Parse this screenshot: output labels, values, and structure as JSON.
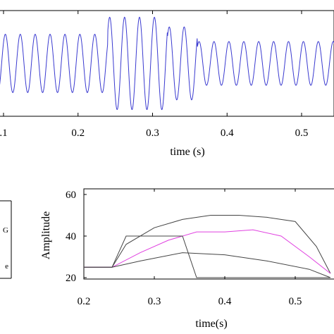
{
  "colors": {
    "signal": "#3a3ad0",
    "amplitude_magenta": "#e040e0",
    "envelope_dark": "#444444",
    "axis": "#000000"
  },
  "chart_data": [
    {
      "type": "line",
      "title": "",
      "xlabel": "time (s)",
      "ylabel": "",
      "xlim": [
        0.0,
        0.55
      ],
      "ylim": [
        -1.05,
        1.05
      ],
      "x_ticks": [
        0.1,
        0.2,
        0.3,
        0.4,
        0.5
      ],
      "x_tick_labels": [
        ".1",
        "0.2",
        "0.3",
        "0.4",
        "0.5"
      ],
      "series": [
        {
          "kind": "oscillation",
          "frequency_hz": 50,
          "segments": [
            {
              "t_start": 0.0,
              "t_end": 0.24,
              "amplitude": 0.6
            },
            {
              "t_start": 0.24,
              "t_end": 0.32,
              "amplitude": 0.95
            },
            {
              "t_start": 0.32,
              "t_end": 0.36,
              "amplitude": 0.75
            },
            {
              "t_start": 0.36,
              "t_end": 0.55,
              "amplitude": 0.45
            }
          ]
        }
      ],
      "grid": false
    },
    {
      "type": "line",
      "title": "",
      "xlabel": "time(s)",
      "ylabel": "Amplitude",
      "xlim": [
        0.2,
        0.55
      ],
      "ylim": [
        16,
        63
      ],
      "x_ticks": [
        0.2,
        0.3,
        0.4,
        0.5
      ],
      "x_tick_labels": [
        "0.2",
        "0.3",
        "0.4",
        "0.5"
      ],
      "y_ticks": [
        20,
        40,
        60
      ],
      "y_tick_labels": [
        "20",
        "40",
        "60"
      ],
      "series": [
        {
          "color_key": "envelope_dark",
          "x": [
            0.2,
            0.24,
            0.26,
            0.3,
            0.34,
            0.38,
            0.42,
            0.46,
            0.5,
            0.53,
            0.55
          ],
          "y": [
            25,
            25,
            36,
            44,
            48,
            50,
            50,
            49,
            47,
            35,
            22
          ]
        },
        {
          "color_key": "amplitude_magenta",
          "x": [
            0.2,
            0.24,
            0.28,
            0.32,
            0.36,
            0.4,
            0.44,
            0.48,
            0.52,
            0.55
          ],
          "y": [
            25,
            25,
            32,
            38,
            42,
            42,
            43,
            40,
            30,
            22
          ]
        },
        {
          "color_key": "envelope_dark",
          "x": [
            0.2,
            0.24,
            0.26,
            0.34,
            0.36,
            0.55
          ],
          "y": [
            25,
            25,
            40,
            40,
            20,
            20
          ]
        },
        {
          "color_key": "envelope_dark",
          "x": [
            0.2,
            0.24,
            0.28,
            0.34,
            0.4,
            0.46,
            0.52,
            0.55
          ],
          "y": [
            25,
            25,
            28,
            32,
            31,
            28,
            24,
            20
          ]
        }
      ],
      "grid": false
    }
  ],
  "side_panel": {
    "letters": [
      "G",
      "",
      "e"
    ]
  }
}
